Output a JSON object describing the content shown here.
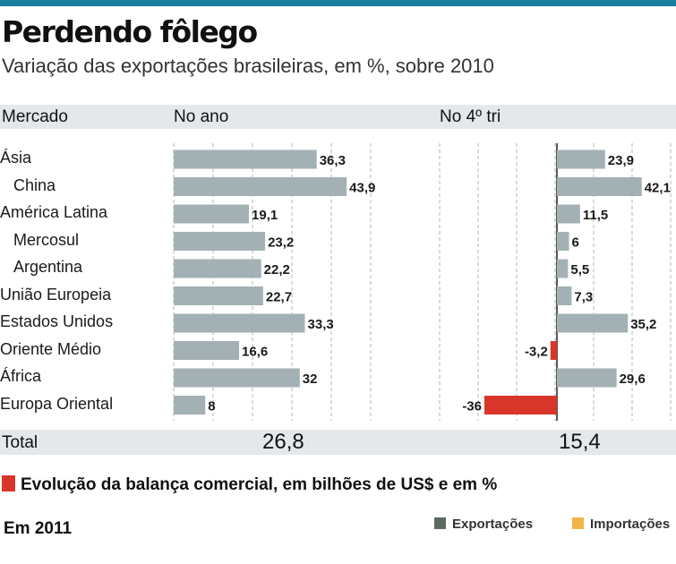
{
  "title": "Perdendo fôlego",
  "subtitle": "Variação das exportações brasileiras, em %, sobre 2010",
  "headers": {
    "mercado": "Mercado",
    "no_ano": "No ano",
    "quarto_tri": "No 4º tri"
  },
  "total": {
    "label": "Total",
    "no_ano": "26,8",
    "quarto_tri": "15,4"
  },
  "section2": {
    "title": "Evolução da balança comercial, em bilhões de US$ e em %",
    "year_label": "Em 2011"
  },
  "legend": [
    {
      "label": "Exportações",
      "color": "#5d6a62"
    },
    {
      "label": "Importações",
      "color": "#f2b54a"
    }
  ],
  "colors": {
    "bar": "#a3b1b5",
    "negative": "#d9362b",
    "grid": "#b5b5b5"
  },
  "chart_data": {
    "type": "bar",
    "orientation": "horizontal",
    "categories": [
      "Ásia",
      "China",
      "América Latina",
      "Mercosul",
      "Argentina",
      "União Europeia",
      "Estados Unidos",
      "Oriente Médio",
      "África",
      "Europa Oriental"
    ],
    "indented": [
      false,
      true,
      false,
      true,
      true,
      false,
      false,
      false,
      false,
      false
    ],
    "series": [
      {
        "values": [
          36.3,
          43.9,
          19.1,
          23.2,
          22.2,
          22.7,
          33.3,
          16.6,
          32,
          8
        ],
        "labels": [
          "36,3",
          "43,9",
          "19,1",
          "23,2",
          "22,2",
          "22,7",
          "33,3",
          "16,6",
          "32",
          "8"
        ]
      },
      {
        "values": [
          23.9,
          42.1,
          11.5,
          6,
          5.5,
          7.3,
          35.2,
          -3.2,
          29.6,
          -36
        ],
        "labels": [
          "23,9",
          "42,1",
          "11,5",
          "6",
          "5,5",
          "7,3",
          "35,2",
          "-3,2",
          "29,6",
          "-36"
        ]
      }
    ],
    "grid": true
  }
}
